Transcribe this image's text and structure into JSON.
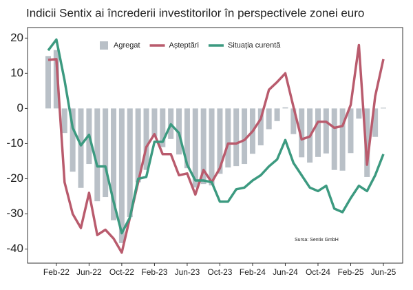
{
  "chart_data": {
    "type": "bar-line",
    "title": "Indicii Sentix ai încrederii investitorilor în perspectivele zonei euro",
    "source": "Sursa: Sentix GmbH",
    "categories": [
      null,
      "Feb-22",
      null,
      null,
      null,
      "Jun-22",
      null,
      null,
      null,
      "Oct-22",
      null,
      null,
      null,
      "Feb-23",
      null,
      null,
      null,
      "Jun-23",
      null,
      null,
      null,
      "Oct-23",
      null,
      null,
      null,
      "Feb-24",
      null,
      null,
      null,
      "Jun-24",
      null,
      null,
      null,
      "Oct-24",
      null,
      null,
      null,
      "Feb-25",
      null,
      null,
      null,
      "Jun-25"
    ],
    "series": [
      {
        "name": "Agregat",
        "type": "bar",
        "color": "#b9c0c7",
        "values": [
          14.9,
          16.6,
          -7,
          -18,
          -22.6,
          -15.8,
          -26.4,
          -25.2,
          -31.8,
          -38.3,
          -30.9,
          -21,
          -17.5,
          -8,
          -11,
          -8.7,
          -13.1,
          -17,
          -22.5,
          -21.5,
          -21.9,
          -18.6,
          -16.8,
          -16.4,
          -15.8,
          -12.9,
          -10.5,
          -5.9,
          -3.6,
          0.3,
          -7.3,
          -13.9,
          -15.4,
          -13.8,
          -12.8,
          -17.5,
          -17.7,
          -12.7,
          -2.9,
          -19.5,
          -8.1,
          0.2
        ]
      },
      {
        "name": "Așteptări",
        "type": "line",
        "color": "#b95b6d",
        "values": [
          13.8,
          14,
          -21,
          -30,
          -34,
          -24,
          -36,
          -34.5,
          -37,
          -41,
          -31,
          -21,
          -11,
          -7.3,
          -13,
          -13,
          -19,
          -18.5,
          -24.5,
          -17.5,
          -21,
          -17,
          -10,
          -10,
          -9,
          -6.5,
          -3,
          5.3,
          7.5,
          10,
          0.5,
          -8.8,
          -8,
          -3.8,
          -3.8,
          -5.5,
          -5,
          1,
          18,
          -16,
          3.5,
          14
        ]
      },
      {
        "name": "Situația curentă",
        "type": "line",
        "color": "#3c9a80",
        "values": [
          16.5,
          19.6,
          8,
          -5.5,
          -10.5,
          -7.5,
          -16.5,
          -16.5,
          -26.5,
          -35.5,
          -31,
          -20,
          -19.5,
          -9.5,
          -9.5,
          -4.5,
          -7,
          -16,
          -20.5,
          -20.5,
          -21,
          -26.5,
          -26.5,
          -23,
          -22.5,
          -20.5,
          -19,
          -16.5,
          -14.5,
          -9,
          -15.5,
          -19,
          -22.5,
          -23.5,
          -22,
          -28.5,
          -29.5,
          -25.5,
          -22,
          -23.5,
          -19,
          -13
        ]
      }
    ],
    "ylim": [
      -44,
      23
    ],
    "yticks": [
      -40,
      -30,
      -20,
      -10,
      0,
      10,
      20
    ],
    "legend": "top"
  }
}
